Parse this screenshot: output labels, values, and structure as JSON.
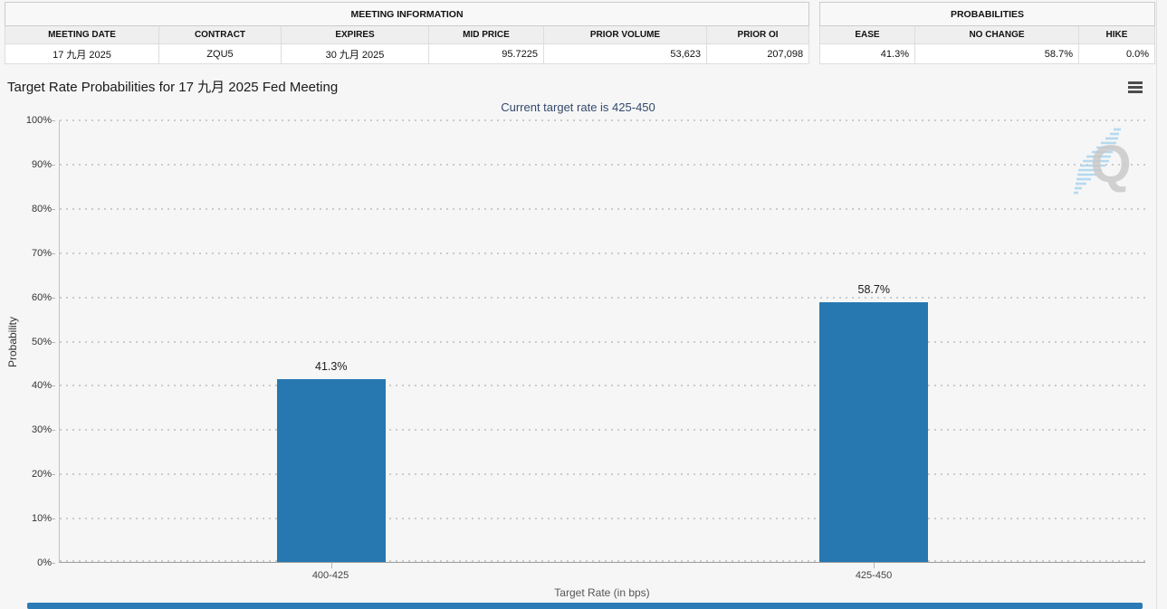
{
  "meeting_information": {
    "title": "MEETING INFORMATION",
    "columns": [
      "MEETING DATE",
      "CONTRACT",
      "EXPIRES",
      "MID PRICE",
      "PRIOR VOLUME",
      "PRIOR OI"
    ],
    "row": [
      "17 九月 2025",
      "ZQU5",
      "30 九月 2025",
      "95.7225",
      "53,623",
      "207,098"
    ]
  },
  "probabilities": {
    "title": "PROBABILITIES",
    "columns": [
      "EASE",
      "NO CHANGE",
      "HIKE"
    ],
    "row": [
      "41.3%",
      "58.7%",
      "0.0%"
    ]
  },
  "chart": {
    "title": "Target Rate Probabilities for 17 九月 2025 Fed Meeting",
    "subtitle": "Current target rate is 425-450",
    "menu_icon": "hamburger-menu-icon",
    "watermark_letter": "Q"
  },
  "chart_data": {
    "type": "bar",
    "categories": [
      "400-425",
      "425-450"
    ],
    "values": [
      41.3,
      58.7
    ],
    "value_labels": [
      "41.3%",
      "58.7%"
    ],
    "title": "Target Rate Probabilities for 17 九月 2025 Fed Meeting",
    "subtitle": "Current target rate is 425-450",
    "xlabel": "Target Rate (in bps)",
    "ylabel": "Probability",
    "ylim": [
      0,
      100
    ],
    "ytick_step": 10,
    "yticks": [
      "0%",
      "10%",
      "20%",
      "30%",
      "40%",
      "50%",
      "60%",
      "70%",
      "80%",
      "90%",
      "100%"
    ],
    "grid": "dotted-horizontal",
    "legend": "none",
    "bar_color": "#2778b0"
  },
  "colors": {
    "bar": "#2778b0",
    "subtitle_text": "#33496d",
    "footer_bar": "#2b7cb6",
    "page_background": "#f6f6f6",
    "watermark_q": "#c5c5c5",
    "watermark_swoosh": "#aed6ef"
  }
}
